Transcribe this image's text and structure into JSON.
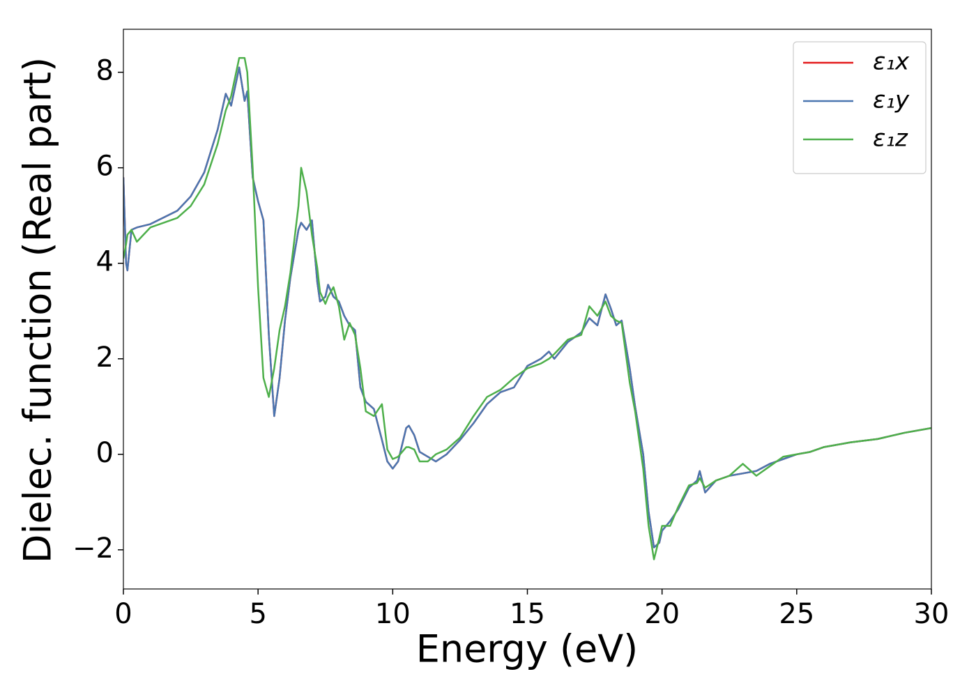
{
  "chart_data": {
    "type": "line",
    "xlabel": "Energy (eV)",
    "ylabel": "Dielec. function (Real part)",
    "xlim": [
      0,
      30
    ],
    "ylim": [
      -2.82,
      8.9
    ],
    "xticks": [
      0,
      5,
      10,
      15,
      20,
      25,
      30
    ],
    "yticks": [
      {
        "value": -2,
        "label": "−2"
      },
      0,
      2,
      4,
      6,
      8
    ],
    "legend": "upper right",
    "x": [
      0,
      0.1,
      0.15,
      0.3,
      0.5,
      1,
      2,
      2.5,
      3,
      3.5,
      3.8,
      4.0,
      4.3,
      4.5,
      4.6,
      4.8,
      5.0,
      5.2,
      5.4,
      5.6,
      5.8,
      6.0,
      6.2,
      6.5,
      6.6,
      6.8,
      7.0,
      7.2,
      7.3,
      7.5,
      7.6,
      7.8,
      8.0,
      8.2,
      8.4,
      8.6,
      8.8,
      9.0,
      9.3,
      9.6,
      9.8,
      10.0,
      10.2,
      10.5,
      10.6,
      10.8,
      11.0,
      11.3,
      11.6,
      12,
      12.5,
      13,
      13.5,
      14,
      14.5,
      15,
      15.5,
      15.8,
      16,
      16.5,
      17,
      17.3,
      17.6,
      17.9,
      18.1,
      18.3,
      18.5,
      18.8,
      19.0,
      19.3,
      19.5,
      19.7,
      19.9,
      20.0,
      20.3,
      20.6,
      21.0,
      21.3,
      21.4,
      21.6,
      22,
      22.5,
      23,
      23.5,
      24,
      24.5,
      25,
      25.5,
      26,
      27,
      28,
      29,
      30
    ],
    "series": [
      {
        "name": "ε₁x",
        "color": "#e41a1c",
        "values": [
          5.8,
          4.0,
          3.85,
          4.7,
          4.75,
          4.82,
          5.1,
          5.4,
          5.9,
          6.8,
          7.55,
          7.3,
          8.1,
          7.4,
          7.6,
          5.8,
          5.3,
          4.9,
          2.5,
          0.8,
          1.6,
          2.8,
          3.7,
          4.7,
          4.85,
          4.7,
          4.9,
          3.6,
          3.2,
          3.3,
          3.55,
          3.3,
          3.2,
          2.9,
          2.7,
          2.6,
          1.4,
          1.1,
          0.95,
          0.3,
          -0.15,
          -0.3,
          -0.15,
          0.55,
          0.6,
          0.4,
          0.05,
          -0.05,
          -0.15,
          0.0,
          0.3,
          0.65,
          1.05,
          1.3,
          1.4,
          1.85,
          2.0,
          2.15,
          2.0,
          2.35,
          2.55,
          2.85,
          2.7,
          3.35,
          3.05,
          2.7,
          2.8,
          1.8,
          1.0,
          0.0,
          -1.2,
          -1.95,
          -1.85,
          -1.6,
          -1.4,
          -1.15,
          -0.7,
          -0.55,
          -0.35,
          -0.8,
          -0.55,
          -0.45,
          -0.4,
          -0.35,
          -0.2,
          -0.1,
          0.0,
          0.05,
          0.15,
          0.25,
          0.32,
          0.45,
          0.55
        ]
      },
      {
        "name": "ε₁y",
        "color": "#4a76b0",
        "values": [
          5.8,
          4.0,
          3.85,
          4.7,
          4.75,
          4.82,
          5.1,
          5.4,
          5.9,
          6.8,
          7.55,
          7.3,
          8.1,
          7.4,
          7.6,
          5.8,
          5.3,
          4.9,
          2.5,
          0.8,
          1.6,
          2.8,
          3.7,
          4.7,
          4.85,
          4.7,
          4.9,
          3.6,
          3.2,
          3.3,
          3.55,
          3.3,
          3.2,
          2.9,
          2.7,
          2.6,
          1.4,
          1.1,
          0.95,
          0.3,
          -0.15,
          -0.3,
          -0.15,
          0.55,
          0.6,
          0.4,
          0.05,
          -0.05,
          -0.15,
          0.0,
          0.3,
          0.65,
          1.05,
          1.3,
          1.4,
          1.85,
          2.0,
          2.15,
          2.0,
          2.35,
          2.55,
          2.85,
          2.7,
          3.35,
          3.05,
          2.7,
          2.8,
          1.8,
          1.0,
          0.0,
          -1.2,
          -1.95,
          -1.85,
          -1.6,
          -1.4,
          -1.15,
          -0.7,
          -0.55,
          -0.35,
          -0.8,
          -0.55,
          -0.45,
          -0.4,
          -0.35,
          -0.2,
          -0.1,
          0.0,
          0.05,
          0.15,
          0.25,
          0.32,
          0.45,
          0.55
        ]
      },
      {
        "name": "ε₁z",
        "color": "#4daf4a",
        "values": [
          4.1,
          4.4,
          4.6,
          4.7,
          4.45,
          4.75,
          4.95,
          5.2,
          5.65,
          6.5,
          7.2,
          7.5,
          8.3,
          8.3,
          8.0,
          6.0,
          3.5,
          1.6,
          1.2,
          1.8,
          2.6,
          3.1,
          3.8,
          5.2,
          6.0,
          5.5,
          4.6,
          3.9,
          3.4,
          3.15,
          3.3,
          3.5,
          3.1,
          2.4,
          2.75,
          2.5,
          1.8,
          0.9,
          0.8,
          1.05,
          0.1,
          -0.1,
          -0.05,
          0.15,
          0.15,
          0.1,
          -0.15,
          -0.15,
          0.0,
          0.1,
          0.35,
          0.8,
          1.2,
          1.35,
          1.6,
          1.8,
          1.9,
          2.0,
          2.1,
          2.4,
          2.5,
          3.1,
          2.9,
          3.2,
          2.9,
          2.8,
          2.75,
          1.5,
          0.9,
          -0.3,
          -1.5,
          -2.2,
          -1.75,
          -1.5,
          -1.5,
          -1.1,
          -0.65,
          -0.6,
          -0.5,
          -0.7,
          -0.55,
          -0.45,
          -0.2,
          -0.45,
          -0.25,
          -0.05,
          0.0,
          0.05,
          0.15,
          0.25,
          0.32,
          0.45,
          0.55
        ]
      }
    ]
  }
}
